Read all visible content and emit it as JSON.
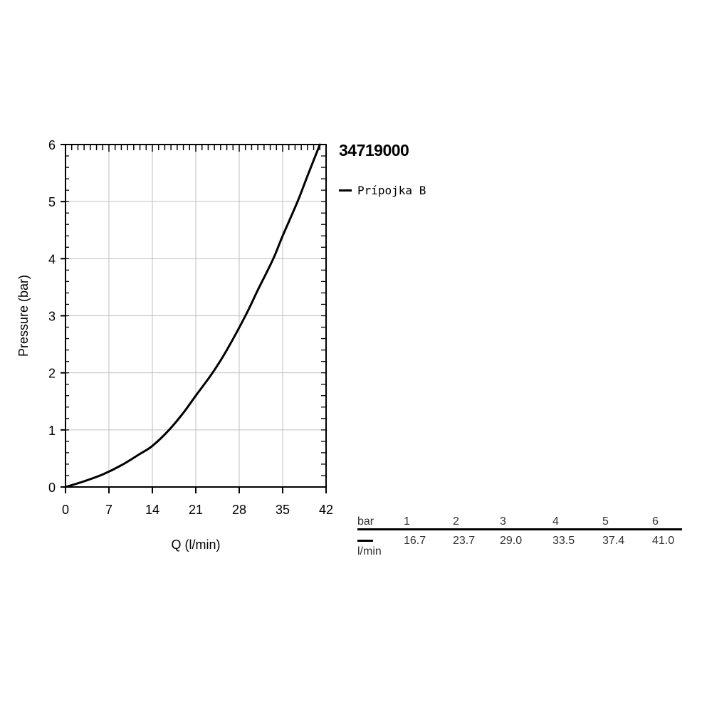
{
  "chart_data": {
    "type": "line",
    "xlabel": "Q (l/min)",
    "ylabel": "Pressure (bar)",
    "xlim": [
      0,
      42
    ],
    "ylim": [
      0,
      6
    ],
    "x_ticks": [
      "0",
      "7",
      "14",
      "21",
      "28",
      "35",
      "42"
    ],
    "y_ticks": [
      "0",
      "1",
      "2",
      "3",
      "4",
      "5",
      "6"
    ],
    "grid": true,
    "legend_position": "right",
    "series": [
      {
        "name": "Prípojka B",
        "color": "#000000",
        "x": [
          0,
          3,
          6,
          9,
          12,
          14,
          16.7,
          19,
          21,
          23.7,
          26,
          29.0,
          31,
          33.5,
          35,
          37.4,
          39,
          41.0
        ],
        "y": [
          0,
          0.1,
          0.22,
          0.38,
          0.58,
          0.72,
          1.0,
          1.3,
          1.6,
          2.0,
          2.4,
          3.0,
          3.45,
          4.0,
          4.4,
          5.0,
          5.45,
          6.0
        ]
      }
    ]
  },
  "product_code": "34719000",
  "legend": {
    "items": [
      {
        "label": "Prípojka B",
        "color": "#000000"
      }
    ]
  },
  "flow_table": {
    "pressure_unit": "bar",
    "flow_unit": "l/min",
    "pressures": [
      "1",
      "2",
      "3",
      "4",
      "5",
      "6"
    ],
    "flows": [
      "16.7",
      "23.7",
      "29.0",
      "33.5",
      "37.4",
      "41.0"
    ]
  }
}
